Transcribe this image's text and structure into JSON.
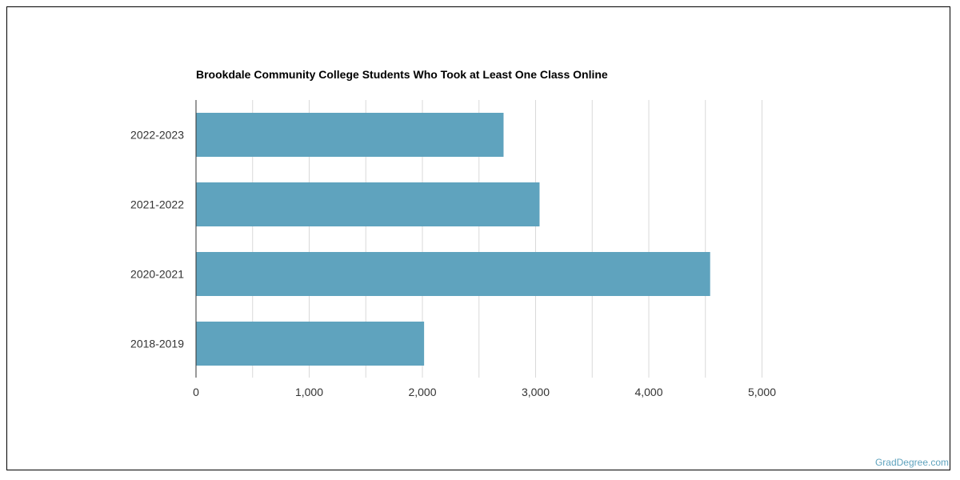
{
  "chart_data": {
    "type": "bar",
    "orientation": "horizontal",
    "title": "Brookdale Community College Students Who Took at Least One Class Online",
    "categories": [
      "2022-2023",
      "2021-2022",
      "2020-2021",
      "2018-2019"
    ],
    "values": [
      2717,
      3035,
      4542,
      2015
    ],
    "xlim": [
      0,
      5000
    ],
    "xticks": [
      0,
      1000,
      2000,
      3000,
      4000,
      5000
    ],
    "xtick_labels": [
      "0",
      "1,000",
      "2,000",
      "3,000",
      "4,000",
      "5,000"
    ],
    "xlabel": "",
    "ylabel": "",
    "grid": true,
    "bar_color": "#5fa3be",
    "legend": "none"
  },
  "watermark": "GradDegree.com"
}
